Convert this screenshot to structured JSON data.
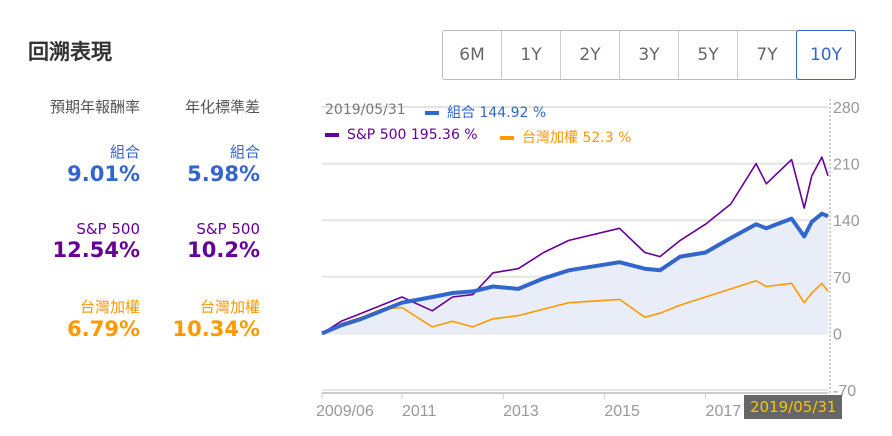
{
  "title": "回溯表現",
  "ranges": [
    "6M",
    "1Y",
    "2Y",
    "3Y",
    "5Y",
    "7Y",
    "10Y"
  ],
  "selected_range": "10Y",
  "columns": [
    {
      "header": "預期年報酬率",
      "items": [
        {
          "name": "組合",
          "value": "9.01%"
        },
        {
          "name": "S&P 500",
          "value": "12.54%"
        },
        {
          "name": "台灣加權",
          "value": "6.79%"
        }
      ]
    },
    {
      "header": "年化標準差",
      "items": [
        {
          "name": "組合",
          "value": "5.98%"
        },
        {
          "name": "S&P 500",
          "value": "10.2%"
        },
        {
          "name": "台灣加權",
          "value": "10.34%"
        }
      ]
    }
  ],
  "colors": {
    "portfolio": "#3366cc",
    "sp500": "#660099",
    "taiwan": "#ff9900"
  },
  "chart_data": {
    "type": "line",
    "date_label": "2019/05/31",
    "hover_date": "2019/05/31",
    "legend": [
      {
        "name": "組合",
        "value": "144.92 %"
      },
      {
        "name": "S&P 500",
        "value": "195.36 %"
      },
      {
        "name": "台灣加權",
        "value": "52.3 %"
      }
    ],
    "x": [
      2009.42,
      2009.8,
      2010.2,
      2010.6,
      2011.0,
      2011.6,
      2012.0,
      2012.4,
      2012.8,
      2013.3,
      2013.8,
      2014.3,
      2015.3,
      2015.8,
      2016.1,
      2016.5,
      2017.0,
      2017.5,
      2018.0,
      2018.2,
      2018.7,
      2018.95,
      2019.1,
      2019.3,
      2019.42
    ],
    "series": [
      {
        "name": "組合",
        "values": [
          0,
          10,
          18,
          28,
          38,
          45,
          50,
          52,
          58,
          55,
          68,
          78,
          88,
          80,
          78,
          95,
          100,
          118,
          135,
          130,
          142,
          120,
          138,
          148,
          145
        ]
      },
      {
        "name": "S&P 500",
        "values": [
          0,
          15,
          25,
          35,
          45,
          28,
          45,
          48,
          75,
          80,
          100,
          115,
          130,
          100,
          95,
          115,
          135,
          160,
          210,
          185,
          215,
          155,
          195,
          218,
          195
        ]
      },
      {
        "name": "台灣加權",
        "values": [
          0,
          12,
          20,
          30,
          32,
          8,
          15,
          8,
          18,
          22,
          30,
          38,
          42,
          20,
          25,
          35,
          45,
          55,
          65,
          58,
          62,
          38,
          50,
          62,
          52
        ]
      }
    ],
    "yticks": [
      280,
      210,
      140,
      70,
      0,
      -70
    ],
    "xticks": [
      {
        "label": "2009/06",
        "x": 2009.42
      },
      {
        "label": "2011",
        "x": 2011
      },
      {
        "label": "2013",
        "x": 2013
      },
      {
        "label": "2015",
        "x": 2015
      },
      {
        "label": "2017",
        "x": 2017
      }
    ],
    "ylim": [
      -70,
      280
    ],
    "xlim": [
      2009.42,
      2019.42
    ]
  }
}
